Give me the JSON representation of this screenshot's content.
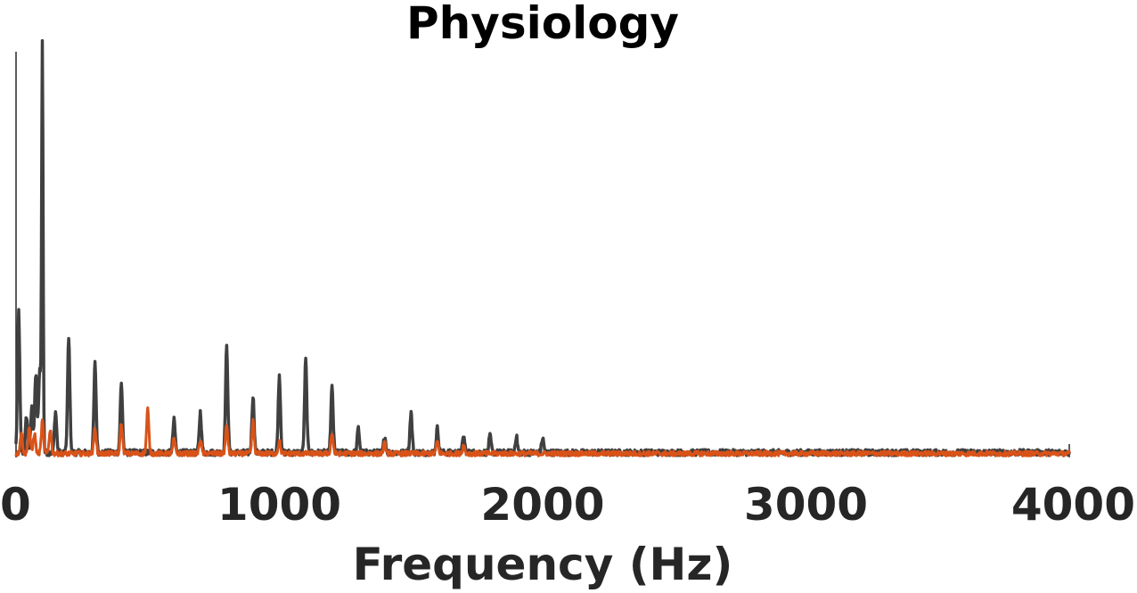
{
  "chart_data": {
    "type": "line",
    "title": "Physiology",
    "xlabel": "Frequency (Hz)",
    "ylabel": "",
    "xlim": [
      0,
      4000
    ],
    "ylim": [
      0,
      1
    ],
    "xticks": [
      0,
      1000,
      2000,
      3000,
      4000
    ],
    "xtick_labels": [
      "0",
      "1000",
      "2000",
      "3000",
      "4000"
    ],
    "grid": false,
    "legend": "none",
    "series": [
      {
        "color": "#404040",
        "peaks": [
          {
            "x": 10,
            "y": 0.35
          },
          {
            "x": 40,
            "y": 0.09
          },
          {
            "x": 60,
            "y": 0.11
          },
          {
            "x": 75,
            "y": 0.19
          },
          {
            "x": 90,
            "y": 0.2
          },
          {
            "x": 100,
            "y": 1.0
          },
          {
            "x": 150,
            "y": 0.1
          },
          {
            "x": 200,
            "y": 0.28
          },
          {
            "x": 300,
            "y": 0.22
          },
          {
            "x": 400,
            "y": 0.17
          },
          {
            "x": 600,
            "y": 0.08
          },
          {
            "x": 700,
            "y": 0.1
          },
          {
            "x": 800,
            "y": 0.26
          },
          {
            "x": 900,
            "y": 0.14
          },
          {
            "x": 1000,
            "y": 0.19
          },
          {
            "x": 1100,
            "y": 0.23
          },
          {
            "x": 1200,
            "y": 0.16
          },
          {
            "x": 1300,
            "y": 0.06
          },
          {
            "x": 1400,
            "y": 0.04
          },
          {
            "x": 1500,
            "y": 0.1
          },
          {
            "x": 1600,
            "y": 0.06
          },
          {
            "x": 1700,
            "y": 0.04
          },
          {
            "x": 1800,
            "y": 0.04
          },
          {
            "x": 1900,
            "y": 0.04
          },
          {
            "x": 2000,
            "y": 0.035
          }
        ],
        "noise_floor": 0.015
      },
      {
        "color": "#D95319",
        "peaks": [
          {
            "x": 20,
            "y": 0.05
          },
          {
            "x": 50,
            "y": 0.065
          },
          {
            "x": 70,
            "y": 0.05
          },
          {
            "x": 100,
            "y": 0.08
          },
          {
            "x": 130,
            "y": 0.06
          },
          {
            "x": 300,
            "y": 0.065
          },
          {
            "x": 400,
            "y": 0.075
          },
          {
            "x": 500,
            "y": 0.11
          },
          {
            "x": 600,
            "y": 0.035
          },
          {
            "x": 700,
            "y": 0.035
          },
          {
            "x": 800,
            "y": 0.07
          },
          {
            "x": 900,
            "y": 0.08
          },
          {
            "x": 1000,
            "y": 0.03
          },
          {
            "x": 1200,
            "y": 0.05
          },
          {
            "x": 1400,
            "y": 0.025
          },
          {
            "x": 1600,
            "y": 0.03
          },
          {
            "x": 1700,
            "y": 0.02
          }
        ],
        "noise_floor": 0.012
      }
    ]
  }
}
